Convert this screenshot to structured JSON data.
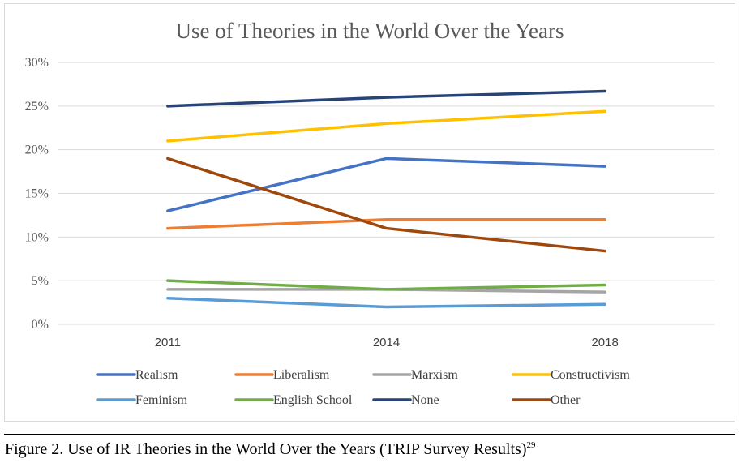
{
  "chart_data": {
    "type": "line",
    "title": "Use of Theories in the World Over the Years",
    "xlabel": "",
    "ylabel": "",
    "categories": [
      "2011",
      "2014",
      "2018"
    ],
    "ylim": [
      0,
      30
    ],
    "yticks": [
      "0%",
      "5%",
      "10%",
      "15%",
      "20%",
      "25%",
      "30%"
    ],
    "grid": true,
    "legend_position": "bottom",
    "series": [
      {
        "name": "Realism",
        "color": "#4472c4",
        "values": [
          13,
          19,
          18.1
        ]
      },
      {
        "name": "Liberalism",
        "color": "#ed7d31",
        "values": [
          11,
          12,
          12
        ]
      },
      {
        "name": "Marxism",
        "color": "#a5a5a5",
        "values": [
          4,
          4,
          3.7
        ]
      },
      {
        "name": "Constructivism",
        "color": "#ffc000",
        "values": [
          21,
          23,
          24.4
        ]
      },
      {
        "name": "Feminism",
        "color": "#5b9bd5",
        "values": [
          3,
          2,
          2.3
        ]
      },
      {
        "name": "English School",
        "color": "#70ad47",
        "values": [
          5,
          4,
          4.5
        ]
      },
      {
        "name": "None",
        "color": "#264478",
        "values": [
          25,
          26,
          26.7
        ]
      },
      {
        "name": "Other",
        "color": "#9e480e",
        "values": [
          19,
          11,
          8.4
        ]
      }
    ]
  },
  "caption": {
    "text": "Figure 2. Use of IR Theories in the World Over the Years (TRIP Survey Results)",
    "footnote": "29"
  }
}
